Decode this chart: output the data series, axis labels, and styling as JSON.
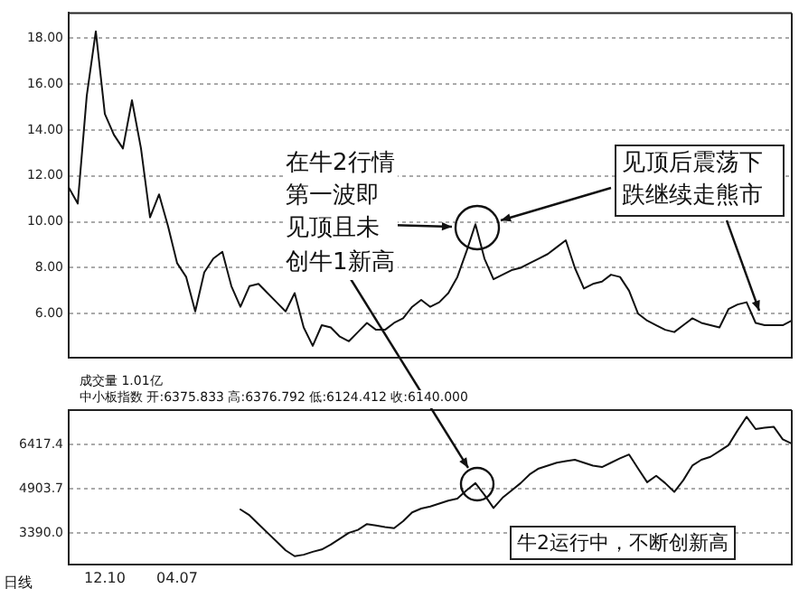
{
  "chart_data": [
    {
      "type": "line",
      "categories": [
        null,
        null,
        null,
        null,
        null,
        null,
        null,
        null,
        null,
        null,
        null,
        null,
        null,
        null,
        null,
        null,
        null,
        null,
        null,
        null,
        null,
        null,
        null,
        null,
        null,
        null,
        null,
        null,
        null,
        null,
        null,
        null,
        null,
        null,
        null,
        null,
        null,
        null,
        null,
        null,
        null,
        null,
        null,
        null,
        null,
        null,
        null,
        null,
        null,
        null,
        null,
        null,
        null,
        null,
        null,
        null,
        null,
        null,
        null,
        null,
        null,
        null,
        null,
        null,
        null,
        null,
        null,
        null,
        null,
        null,
        null,
        null,
        null,
        null,
        null,
        null,
        null,
        null,
        null,
        null,
        null
      ],
      "series": [
        {
          "color": "#111111",
          "values": [
            11.5,
            10.8,
            15.5,
            18.3,
            14.7,
            13.8,
            13.2,
            15.3,
            13.2,
            10.2,
            11.2,
            9.8,
            8.2,
            7.6,
            6.1,
            7.8,
            8.4,
            8.7,
            7.2,
            6.3,
            7.2,
            7.3,
            6.9,
            6.5,
            6.1,
            6.9,
            5.4,
            4.6,
            5.5,
            5.4,
            5.0,
            4.8,
            5.2,
            5.6,
            5.3,
            5.3,
            5.6,
            5.8,
            6.3,
            6.6,
            6.3,
            6.5,
            6.9,
            7.6,
            8.7,
            9.9,
            8.4,
            7.5,
            7.7,
            7.9,
            8.0,
            8.2,
            8.4,
            8.6,
            8.9,
            9.2,
            8.0,
            7.1,
            7.3,
            7.4,
            7.7,
            7.6,
            7.0,
            6.0,
            5.7,
            5.5,
            5.3,
            5.2,
            5.5,
            5.8,
            5.6,
            5.5,
            5.4,
            6.2,
            6.4,
            6.5,
            5.6,
            5.5,
            5.5,
            5.5,
            5.7
          ]
        }
      ],
      "ylim": [
        4.1,
        19.1
      ],
      "yticks": [
        {
          "value": 6,
          "label": "6.00"
        },
        {
          "value": 8,
          "label": "8.00"
        },
        {
          "value": 10,
          "label": "10.00"
        },
        {
          "value": 12,
          "label": "12.00"
        },
        {
          "value": 14,
          "label": "14.00"
        },
        {
          "value": 16,
          "label": "16.00"
        },
        {
          "value": 18,
          "label": "18.00"
        }
      ],
      "grid": "y",
      "legend": false,
      "marker": "none",
      "line_style": "solid",
      "tick_labels": "y",
      "annotations": [
        "在牛2行情第一波即见顶且未创牛1新高",
        "见顶后震荡下跌继续走熊市"
      ]
    },
    {
      "type": "line",
      "categories": [
        null,
        null,
        null,
        null,
        "12.10",
        null,
        null,
        null,
        null,
        null,
        null,
        null,
        "04.07",
        null,
        null,
        null,
        null,
        null,
        null,
        null,
        null,
        null,
        null,
        null,
        null,
        null,
        null,
        null,
        null,
        null,
        null,
        null,
        null,
        null,
        null,
        null,
        null,
        null,
        null,
        null,
        null,
        null,
        null,
        null,
        null,
        null,
        null,
        null,
        null,
        null,
        null,
        null,
        null,
        null,
        null,
        null,
        null,
        null,
        null,
        null,
        null,
        null,
        null,
        null,
        null,
        null,
        null,
        null,
        null,
        null,
        null,
        null,
        null,
        null,
        null,
        null,
        null,
        null,
        null,
        null,
        null
      ],
      "series": [
        {
          "color": "#111111",
          "values": [
            null,
            null,
            null,
            null,
            null,
            null,
            null,
            null,
            null,
            null,
            null,
            null,
            null,
            null,
            null,
            null,
            null,
            null,
            null,
            4200,
            4000,
            3700,
            3400,
            3100,
            2800,
            2600,
            2650,
            2750,
            2830,
            3000,
            3200,
            3400,
            3500,
            3700,
            3650,
            3600,
            3560,
            3800,
            4100,
            4230,
            4300,
            4400,
            4500,
            4570,
            4850,
            5100,
            4700,
            4250,
            4600,
            4850,
            5100,
            5400,
            5600,
            5700,
            5800,
            5850,
            5900,
            5800,
            5700,
            5650,
            5800,
            5950,
            6080,
            5600,
            5130,
            5350,
            5100,
            4800,
            5200,
            5700,
            5900,
            6000,
            6200,
            6400,
            6900,
            7370,
            6950,
            7000,
            7030,
            6600,
            6450
          ]
        }
      ],
      "ylim": [
        2320,
        7600
      ],
      "yticks": [
        {
          "value": 3390,
          "label": "3390.0"
        },
        4903.7,
        6417.4
      ],
      "grid": "y",
      "legend": false,
      "marker": "none",
      "line_style": "solid",
      "annotations": [
        "成交量 1.01亿",
        "中小板指数 开:6375.833 高:6376.792 低:6124.412 收:6140.000",
        "牛2运行中，不断创新高",
        "日线"
      ]
    }
  ]
}
